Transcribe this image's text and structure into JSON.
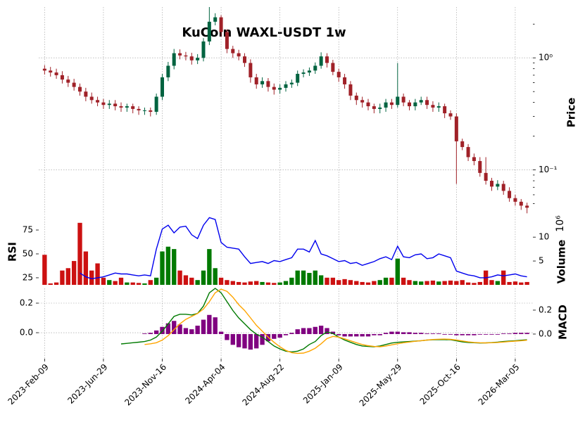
{
  "chart_data": {
    "type": "candlestick",
    "title": "KuCoin WAXL-USDT 1w",
    "xlim": [
      -1,
      83
    ],
    "xticks": [
      {
        "value": 0,
        "label": "2023-Feb-09"
      },
      {
        "value": 10,
        "label": "2023-Jun-29"
      },
      {
        "value": 20,
        "label": "2023-Nov-16"
      },
      {
        "value": 30,
        "label": "2024-Apr-04"
      },
      {
        "value": 40,
        "label": "2024-Aug-22"
      },
      {
        "value": 50,
        "label": "2025-Jan-09"
      },
      {
        "value": 60,
        "label": "2025-May-29"
      },
      {
        "value": 70,
        "label": "2025-Oct-16"
      },
      {
        "value": 80,
        "label": "2026-Mar-05"
      }
    ],
    "grid": true,
    "ylabel": "Price",
    "log_scale": true,
    "ylim": [
      0.04,
      2.84
    ],
    "yticks": [
      {
        "value": 1,
        "label": "10⁰"
      },
      {
        "value": 0.1,
        "label": "10⁻¹"
      }
    ],
    "yticks_minor": [
      0.05,
      0.06,
      0.07,
      0.08,
      0.09,
      0.2,
      0.3,
      0.4,
      0.5,
      0.6,
      0.7,
      0.8,
      0.9,
      2
    ],
    "up_color": "#006340",
    "down_color": "#a02128",
    "open": [
      0.8,
      0.77,
      0.74,
      0.7,
      0.64,
      0.6,
      0.55,
      0.5,
      0.45,
      0.42,
      0.4,
      0.38,
      0.39,
      0.37,
      0.36,
      0.37,
      0.35,
      0.34,
      0.34,
      0.33,
      0.45,
      0.67,
      0.85,
      1.1,
      1.05,
      1.03,
      0.95,
      1.0,
      1.4,
      2.1,
      2.3,
      1.7,
      1.2,
      1.1,
      1.03,
      0.9,
      0.67,
      0.58,
      0.62,
      0.55,
      0.52,
      0.54,
      0.58,
      0.6,
      0.72,
      0.74,
      0.77,
      0.85,
      1.03,
      0.9,
      0.75,
      0.67,
      0.58,
      0.46,
      0.42,
      0.4,
      0.37,
      0.35,
      0.36,
      0.4,
      0.38,
      0.45,
      0.4,
      0.37,
      0.4,
      0.42,
      0.38,
      0.36,
      0.37,
      0.32,
      0.3,
      0.18,
      0.16,
      0.13,
      0.12,
      0.094,
      0.08,
      0.071,
      0.075,
      0.065,
      0.056,
      0.052,
      0.048
    ],
    "high": [
      0.86,
      0.83,
      0.8,
      0.76,
      0.69,
      0.65,
      0.59,
      0.54,
      0.49,
      0.45,
      0.43,
      0.42,
      0.42,
      0.4,
      0.39,
      0.39,
      0.37,
      0.36,
      0.36,
      0.48,
      0.72,
      0.92,
      1.2,
      1.19,
      1.13,
      1.11,
      1.08,
      1.5,
      2.84,
      2.5,
      2.4,
      1.8,
      1.28,
      1.18,
      1.1,
      0.97,
      0.72,
      0.67,
      0.66,
      0.59,
      0.58,
      0.62,
      0.64,
      0.77,
      0.79,
      0.82,
      0.91,
      1.12,
      1.1,
      0.96,
      0.8,
      0.72,
      0.62,
      0.49,
      0.45,
      0.43,
      0.39,
      0.39,
      0.43,
      0.43,
      0.9,
      0.48,
      0.42,
      0.43,
      0.45,
      0.45,
      0.41,
      0.4,
      0.39,
      0.34,
      0.32,
      0.19,
      0.17,
      0.14,
      0.13,
      0.13,
      0.085,
      0.081,
      0.08,
      0.07,
      0.06,
      0.055,
      0.051
    ],
    "low": [
      0.71,
      0.68,
      0.65,
      0.59,
      0.55,
      0.51,
      0.46,
      0.41,
      0.39,
      0.37,
      0.35,
      0.35,
      0.34,
      0.33,
      0.33,
      0.32,
      0.31,
      0.31,
      0.3,
      0.31,
      0.42,
      0.62,
      0.79,
      0.97,
      0.95,
      0.87,
      0.88,
      0.93,
      1.3,
      1.95,
      1.55,
      1.1,
      1.0,
      0.95,
      0.83,
      0.6,
      0.53,
      0.54,
      0.5,
      0.47,
      0.48,
      0.5,
      0.54,
      0.56,
      0.67,
      0.69,
      0.72,
      0.8,
      0.82,
      0.7,
      0.61,
      0.53,
      0.42,
      0.38,
      0.36,
      0.34,
      0.32,
      0.32,
      0.33,
      0.35,
      0.36,
      0.37,
      0.34,
      0.34,
      0.38,
      0.35,
      0.33,
      0.33,
      0.29,
      0.28,
      0.075,
      0.15,
      0.12,
      0.11,
      0.087,
      0.074,
      0.065,
      0.066,
      0.06,
      0.052,
      0.048,
      0.044,
      0.041
    ],
    "close": [
      0.77,
      0.74,
      0.7,
      0.64,
      0.6,
      0.55,
      0.5,
      0.45,
      0.42,
      0.4,
      0.38,
      0.39,
      0.37,
      0.36,
      0.37,
      0.35,
      0.34,
      0.34,
      0.33,
      0.45,
      0.67,
      0.85,
      1.1,
      1.05,
      1.03,
      0.95,
      1.0,
      1.4,
      2.1,
      2.3,
      1.7,
      1.2,
      1.1,
      1.03,
      0.9,
      0.67,
      0.58,
      0.62,
      0.55,
      0.52,
      0.54,
      0.58,
      0.6,
      0.72,
      0.74,
      0.77,
      0.85,
      1.03,
      0.9,
      0.75,
      0.67,
      0.58,
      0.46,
      0.42,
      0.4,
      0.37,
      0.35,
      0.36,
      0.4,
      0.38,
      0.45,
      0.4,
      0.37,
      0.4,
      0.42,
      0.38,
      0.36,
      0.37,
      0.32,
      0.3,
      0.18,
      0.16,
      0.13,
      0.12,
      0.094,
      0.08,
      0.071,
      0.075,
      0.065,
      0.056,
      0.052,
      0.048,
      0.046
    ],
    "volume": {
      "label": "Volume",
      "offset": "10⁶",
      "up_color": "#007a00",
      "down_color": "#cc1111",
      "ylim": [
        0,
        14.3
      ],
      "yticks": [
        5,
        10
      ],
      "values": [
        6.3,
        0.3,
        0.5,
        3.0,
        3.5,
        5.0,
        13.0,
        7.0,
        3.0,
        4.5,
        1.5,
        1.0,
        0.8,
        1.5,
        0.5,
        0.5,
        0.4,
        0.3,
        1.0,
        1.5,
        7.0,
        8.0,
        7.5,
        3.0,
        2.0,
        1.5,
        1.0,
        3.0,
        7.5,
        3.5,
        1.5,
        1.0,
        0.8,
        0.6,
        0.5,
        0.7,
        0.8,
        0.6,
        0.5,
        0.4,
        0.5,
        0.8,
        1.5,
        3.0,
        3.0,
        2.5,
        3.0,
        2.0,
        1.5,
        1.5,
        1.0,
        1.2,
        1.0,
        0.8,
        0.6,
        0.5,
        0.8,
        1.0,
        1.5,
        1.5,
        5.5,
        1.5,
        1.0,
        0.8,
        0.7,
        0.8,
        0.9,
        0.7,
        0.8,
        0.9,
        0.8,
        1.0,
        0.5,
        0.4,
        0.6,
        3.0,
        1.0,
        0.8,
        3.0,
        0.6,
        0.7,
        0.5,
        0.6
      ]
    },
    "rsi": {
      "label": "RSI",
      "color": "#0000ee",
      "ylim": [
        17.6,
        89
      ],
      "yticks": [
        25,
        50,
        75
      ],
      "values": [
        null,
        null,
        null,
        null,
        null,
        null,
        30,
        26,
        24,
        25,
        26,
        28,
        30,
        29,
        29,
        28,
        27,
        28,
        27,
        55,
        76,
        80,
        72,
        78,
        79,
        70,
        66,
        80,
        88,
        86,
        62,
        57,
        56,
        55,
        47,
        40,
        41,
        42,
        40,
        43,
        42,
        44,
        46,
        55,
        55,
        52,
        64,
        50,
        48,
        45,
        42,
        43,
        40,
        41,
        38,
        40,
        42,
        45,
        47,
        44,
        58,
        47,
        46,
        49,
        50,
        45,
        46,
        50,
        48,
        46,
        32,
        30,
        28,
        27,
        25,
        25,
        26,
        28,
        27,
        28,
        29,
        27,
        26
      ]
    },
    "macd": {
      "label": "MACD",
      "ylim": [
        -0.176,
        0.3
      ],
      "yticks": [
        {
          "value": 0,
          "label": "0.0"
        },
        {
          "value": 0.2,
          "label": "0.2"
        }
      ],
      "y2lim": [
        -0.206,
        0.382
      ],
      "y2ticks": [
        {
          "value": 0,
          "label": "0.0"
        },
        {
          "value": 0.2,
          "label": "0.2"
        }
      ],
      "macd_line": {
        "color": "#007a00",
        "values": [
          null,
          null,
          null,
          null,
          null,
          null,
          null,
          null,
          null,
          null,
          null,
          null,
          null,
          -0.076,
          -0.072,
          -0.068,
          -0.064,
          -0.06,
          -0.05,
          -0.03,
          0.01,
          0.06,
          0.11,
          0.125,
          0.125,
          0.12,
          0.13,
          0.18,
          0.27,
          0.3,
          0.27,
          0.21,
          0.15,
          0.1,
          0.06,
          0.02,
          -0.01,
          -0.03,
          -0.06,
          -0.09,
          -0.11,
          -0.125,
          -0.13,
          -0.125,
          -0.11,
          -0.08,
          -0.06,
          -0.02,
          0.005,
          -0.005,
          -0.03,
          -0.05,
          -0.065,
          -0.08,
          -0.09,
          -0.093,
          -0.095,
          -0.09,
          -0.08,
          -0.07,
          -0.065,
          -0.062,
          -0.06,
          -0.057,
          -0.054,
          -0.05,
          -0.048,
          -0.047,
          -0.047,
          -0.048,
          -0.055,
          -0.062,
          -0.066,
          -0.068,
          -0.07,
          -0.069,
          -0.067,
          -0.064,
          -0.06,
          -0.057,
          -0.054,
          -0.051,
          -0.048
        ]
      },
      "signal": {
        "color": "#ffa500",
        "values": [
          null,
          null,
          null,
          null,
          null,
          null,
          null,
          null,
          null,
          null,
          null,
          null,
          null,
          null,
          null,
          null,
          null,
          -0.08,
          -0.075,
          -0.068,
          -0.05,
          -0.02,
          0.02,
          0.06,
          0.09,
          0.11,
          0.13,
          0.16,
          0.21,
          0.27,
          0.295,
          0.28,
          0.24,
          0.19,
          0.15,
          0.1,
          0.05,
          0.01,
          -0.03,
          -0.065,
          -0.095,
          -0.12,
          -0.135,
          -0.14,
          -0.138,
          -0.125,
          -0.105,
          -0.075,
          -0.04,
          -0.025,
          -0.03,
          -0.042,
          -0.055,
          -0.068,
          -0.08,
          -0.088,
          -0.093,
          -0.095,
          -0.09,
          -0.082,
          -0.075,
          -0.068,
          -0.063,
          -0.058,
          -0.054,
          -0.05,
          -0.046,
          -0.044,
          -0.043,
          -0.045,
          -0.05,
          -0.056,
          -0.062,
          -0.066,
          -0.068,
          -0.069,
          -0.068,
          -0.066,
          -0.063,
          -0.06,
          -0.057,
          -0.054,
          -0.051
        ]
      },
      "histogram": {
        "color": "#800080",
        "axis": "y2",
        "values": [
          null,
          null,
          null,
          null,
          null,
          null,
          null,
          null,
          null,
          null,
          null,
          null,
          null,
          null,
          null,
          null,
          null,
          0.005,
          0.01,
          0.03,
          0.06,
          0.09,
          0.11,
          0.08,
          0.05,
          0.04,
          0.07,
          0.12,
          0.16,
          0.14,
          0.02,
          -0.05,
          -0.09,
          -0.11,
          -0.12,
          -0.13,
          -0.12,
          -0.09,
          -0.06,
          -0.04,
          -0.03,
          -0.01,
          0.01,
          0.04,
          0.05,
          0.05,
          0.06,
          0.07,
          0.05,
          0.02,
          -0.01,
          -0.02,
          -0.02,
          -0.02,
          -0.02,
          -0.02,
          -0.01,
          -0.01,
          0.01,
          0.02,
          0.02,
          0.015,
          0.015,
          0.01,
          0.01,
          0.005,
          0.005,
          0.005,
          -0.005,
          -0.005,
          -0.01,
          -0.01,
          -0.01,
          -0.01,
          -0.005,
          -0.005,
          -0.005,
          -0.005,
          0.005,
          0.005,
          0.01,
          0.01,
          0.01
        ]
      }
    }
  }
}
